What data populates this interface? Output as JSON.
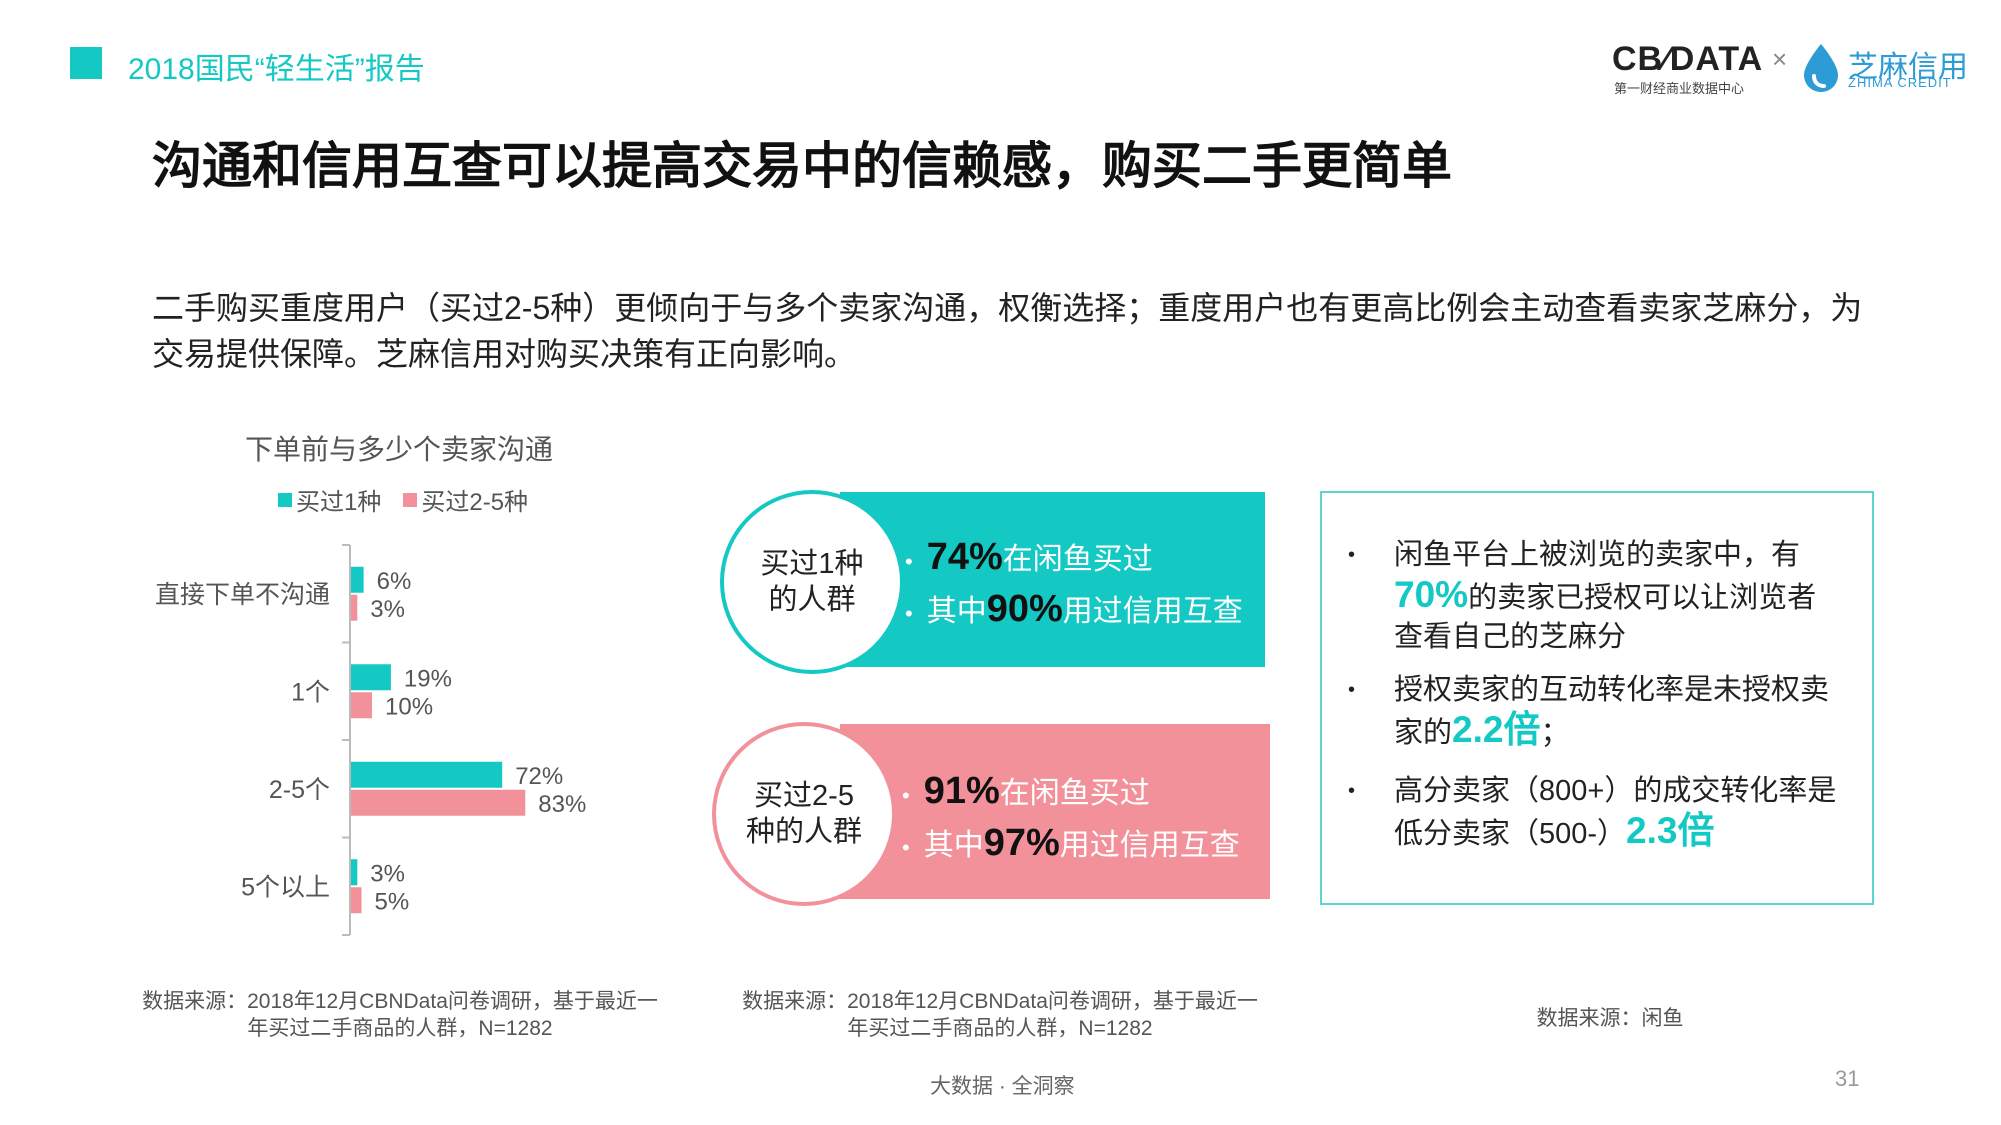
{
  "header": {
    "report_title": "2018国民“轻生活”报告",
    "logo_cbn": "CB∕DATA",
    "logo_cbn_sub": "第一财经商业数据中心",
    "logo_x": "×",
    "logo_zm": "芝麻信用",
    "logo_zm_sub": "ZHIMA CREDIT"
  },
  "main_title": "沟通和信用互查可以提高交易中的信赖感，购买二手更简单",
  "subtitle": "二手购买重度用户（买过2-5种）更倾向于与多个卖家沟通，权衡选择；重度用户也有更高比例会主动查看卖家芝麻分，为交易提供保障。芝麻信用对购买决策有正向影响。",
  "chart_data": {
    "type": "bar",
    "orientation": "horizontal",
    "title": "下单前与多少个卖家沟通",
    "categories": [
      "直接下单不沟通",
      "1个",
      "2-5个",
      "5个以上"
    ],
    "series": [
      {
        "name": "买过1种",
        "color": "#14c8c3",
        "values": [
          6,
          19,
          72,
          3
        ]
      },
      {
        "name": "买过2-5种",
        "color": "#f2919a",
        "values": [
          3,
          10,
          83,
          5
        ]
      }
    ],
    "value_suffix": "%",
    "legend_position": "top",
    "grid": false
  },
  "panels": {
    "group1": {
      "circle_line1": "买过1种",
      "circle_line2": "的人群",
      "row1_num": "74%",
      "row1_text": "在闲鱼买过",
      "row2_pre": "其中",
      "row2_num": "90%",
      "row2_text": "用过信用互查"
    },
    "group2": {
      "circle_line1": "买过2-5",
      "circle_line2": "种的人群",
      "row1_num": "91%",
      "row1_text": "在闲鱼买过",
      "row2_pre": "其中",
      "row2_num": "97%",
      "row2_text": "用过信用互查"
    },
    "bullet": "•"
  },
  "info": {
    "item1_a": "闲鱼平台上被浏览的卖家中，有",
    "item1_hl": "70%",
    "item1_b": "的卖家已授权可以让浏览者查看自己的芝麻分",
    "item2_a": "授权卖家的互动转化率是未授权卖家的",
    "item2_hl": "2.2倍",
    "item2_b": "；",
    "item3_a": "高分卖家（800+）的成交转化率是低分卖家（500-）",
    "item3_hl": "2.3倍"
  },
  "sources": {
    "src1": "数据来源：2018年12月CBNData问卷调研，基于最近一年买过二手商品的人群，N=1282",
    "src2": "数据来源：2018年12月CBNData问卷调研，基于最近一年买过二手商品的人群，N=1282",
    "src3": "数据来源：闲鱼"
  },
  "footer": "大数据 · 全洞察",
  "page_number": "31"
}
